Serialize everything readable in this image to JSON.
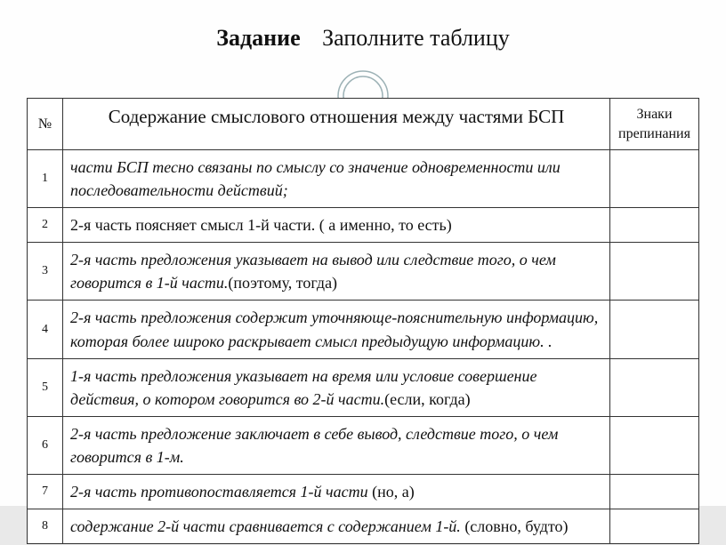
{
  "title": {
    "strong": "Задание",
    "plain": "Заполните таблицу"
  },
  "deco": {
    "stroke": "#9db2b6",
    "fill": "none",
    "r_outer": 28,
    "r_inner": 22
  },
  "headers": {
    "num": "№",
    "content": "Содержание смыслового отношения между частями БСП",
    "sign": "Знаки препинания"
  },
  "rows": [
    {
      "n": "1",
      "italic": "части БСП тесно связаны по смыслу со значение одновременности или последовательности действий;",
      "plain": ""
    },
    {
      "n": "2",
      "italic": "",
      "plain": "2-я часть поясняет смысл 1-й части. ( а именно, то есть)"
    },
    {
      "n": "3",
      "italic": "2-я часть предложения указывает на вывод или следствие того, о чем говорится в 1-й части.",
      "plain": "(поэтому, тогда)"
    },
    {
      "n": "4",
      "italic": "2-я часть предложения содержит уточняюще-пояснительную информацию, которая более широко раскрывает смысл предыдущую информацию. .",
      "plain": ""
    },
    {
      "n": "5",
      "italic": "1-я часть предложения указывает на время или условие совершение действия, о котором говорится во 2-й части.",
      "plain": "(если, когда)"
    },
    {
      "n": "6",
      "italic": "2-я часть предложение заключает в себе вывод, следствие того, о чем говорится в 1-м.",
      "plain": ""
    },
    {
      "n": "7",
      "italic": "2-я часть противопоставляется 1-й части",
      "plain": " (но, а)"
    },
    {
      "n": "8",
      "italic": "  содержание 2-й части сравнивается с содержанием 1-й.",
      "plain": " (словно, будто)"
    }
  ]
}
